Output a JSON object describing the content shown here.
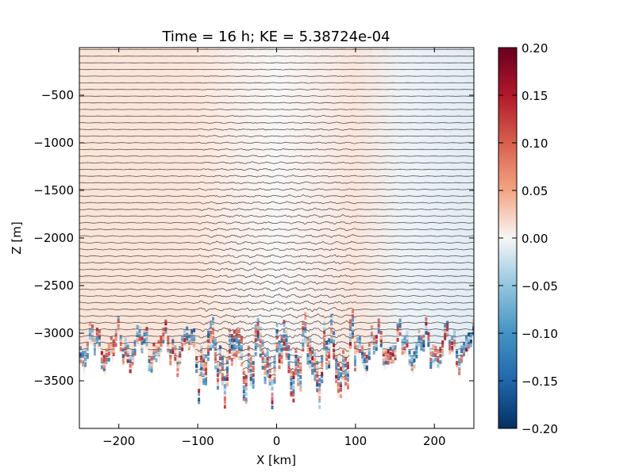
{
  "chart_data": {
    "type": "heatmap",
    "title": "Time = 16 h; KE = 5.38724e-04",
    "xlabel": "X [km]",
    "ylabel": "Z [m]",
    "xlim": [
      -250,
      250
    ],
    "ylim": [
      -4000,
      0
    ],
    "xticks": [
      -200,
      -100,
      0,
      100,
      200
    ],
    "xtick_labels": [
      "−200",
      "−100",
      "0",
      "100",
      "200"
    ],
    "yticks": [
      -500,
      -1000,
      -1500,
      -2000,
      -2500,
      -3000,
      -3500
    ],
    "ytick_labels": [
      "−500",
      "−1000",
      "−1500",
      "−2000",
      "−2500",
      "−3000",
      "−3500"
    ],
    "colorbar": {
      "colormap": "RdBu_r",
      "vmin": -0.2,
      "vmax": 0.2,
      "ticks": [
        0.2,
        0.15,
        0.1,
        0.05,
        0.0,
        -0.05,
        -0.1,
        -0.15,
        -0.2
      ],
      "tick_labels": [
        "0.20",
        "0.15",
        "0.10",
        "0.05",
        "0.00",
        "−0.05",
        "−0.10",
        "−0.15",
        "−0.20"
      ]
    },
    "contours": {
      "color": "#555555",
      "count": 50
    },
    "grid": false,
    "ridge_region_x": [
      -100,
      100
    ],
    "bottom_depth_range": [
      -3800,
      -3000
    ]
  }
}
